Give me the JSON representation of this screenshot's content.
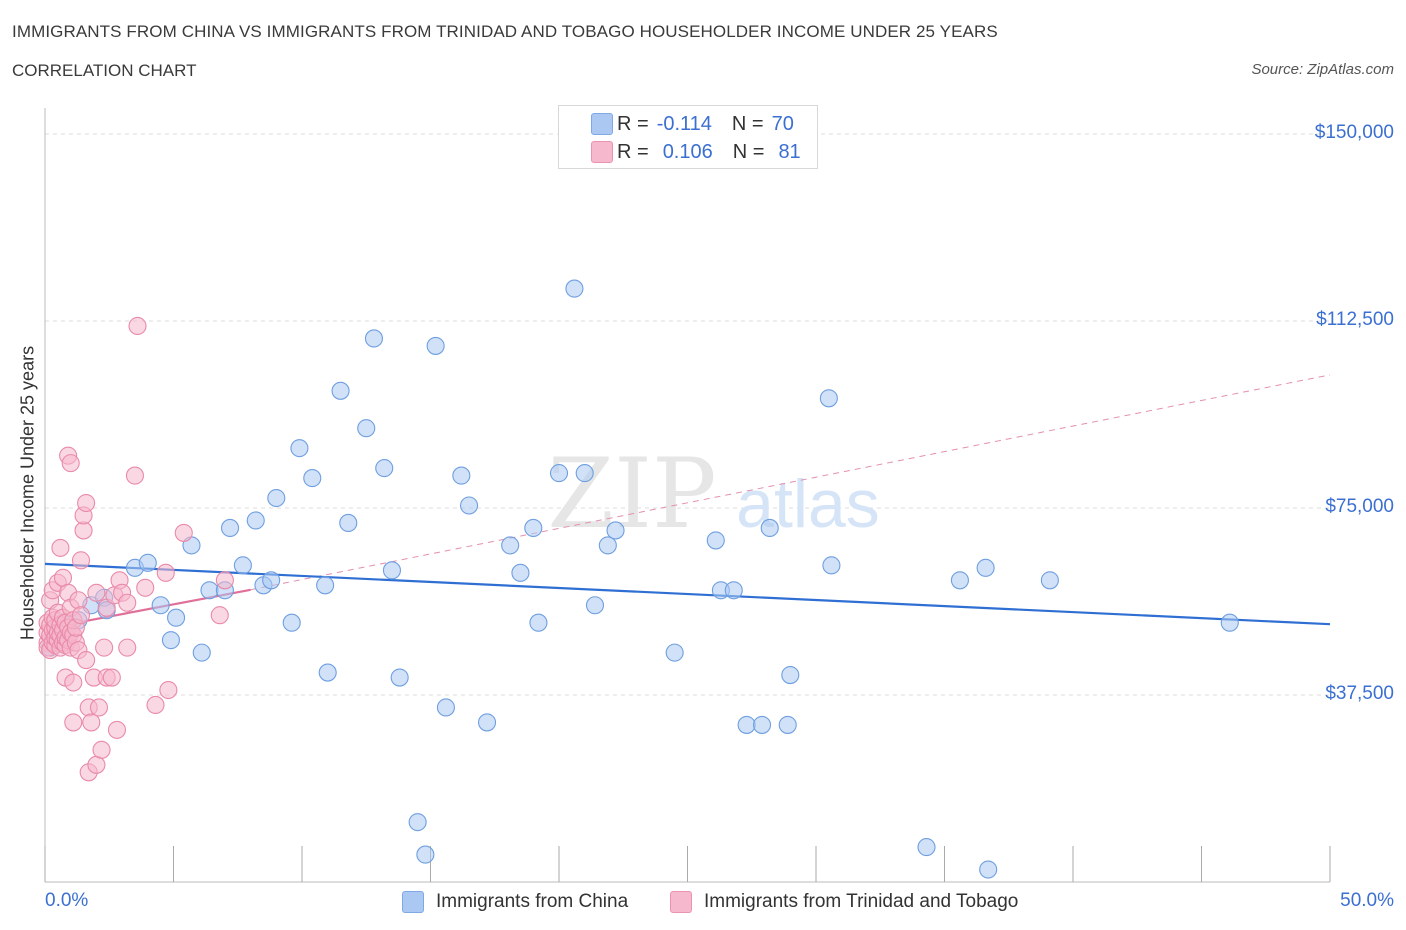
{
  "title": "IMMIGRANTS FROM CHINA VS IMMIGRANTS FROM TRINIDAD AND TOBAGO HOUSEHOLDER INCOME UNDER 25 YEARS",
  "subtitle": "CORRELATION CHART",
  "source": "Source: ZipAtlas.com",
  "watermark": {
    "zip": "ZIP",
    "atlas": "atlas"
  },
  "legend": {
    "rows": [
      {
        "r_label": "R =",
        "r_value": "-0.114",
        "n_label": "N =",
        "n_value": "70",
        "color": "#aac8f2"
      },
      {
        "r_label": "R =",
        "r_value": "0.106",
        "n_label": "N =",
        "n_value": "81",
        "color": "#f6b8cc"
      }
    ]
  },
  "chart_data": {
    "type": "scatter",
    "title": "IMMIGRANTS FROM CHINA VS IMMIGRANTS FROM TRINIDAD AND TOBAGO HOUSEHOLDER INCOME UNDER 25 YEARS",
    "xlabel": "",
    "ylabel": "Householder Income Under 25 years",
    "xlim": [
      0,
      50
    ],
    "ylim": [
      0,
      150000
    ],
    "x_tick_labels": [
      "0.0%",
      "50.0%"
    ],
    "y_tick_labels": [
      "$37,500",
      "$75,000",
      "$112,500",
      "$150,000"
    ],
    "y_ticks": [
      37500,
      75000,
      112500,
      150000
    ],
    "grid": "horizontal dashed",
    "legend_position": "top-center",
    "series": [
      {
        "name": "Immigrants from China",
        "color": "#6f9fe0",
        "fill": "#aac8f2",
        "trend": {
          "x": [
            0,
            50
          ],
          "y": [
            63800,
            51700
          ],
          "style": "solid",
          "color": "#2f6fd3"
        },
        "points": [
          [
            0.2,
            47000
          ],
          [
            0.3,
            48500
          ],
          [
            0.5,
            50500
          ],
          [
            0.7,
            52000
          ],
          [
            0.9,
            51500
          ],
          [
            1.3,
            52500
          ],
          [
            1.8,
            55500
          ],
          [
            2.3,
            57000
          ],
          [
            2.4,
            54500
          ],
          [
            3.5,
            63000
          ],
          [
            4.0,
            64000
          ],
          [
            4.5,
            55500
          ],
          [
            4.9,
            48500
          ],
          [
            5.1,
            53000
          ],
          [
            5.7,
            67500
          ],
          [
            6.1,
            46000
          ],
          [
            6.4,
            58500
          ],
          [
            7.0,
            58500
          ],
          [
            7.2,
            71000
          ],
          [
            7.7,
            63500
          ],
          [
            8.2,
            72500
          ],
          [
            8.5,
            59500
          ],
          [
            8.8,
            60500
          ],
          [
            9.0,
            77000
          ],
          [
            9.6,
            52000
          ],
          [
            9.9,
            87000
          ],
          [
            10.4,
            81000
          ],
          [
            10.9,
            59500
          ],
          [
            11.0,
            42000
          ],
          [
            11.5,
            98500
          ],
          [
            11.8,
            72000
          ],
          [
            12.5,
            91000
          ],
          [
            12.8,
            109000
          ],
          [
            13.2,
            83000
          ],
          [
            13.5,
            62500
          ],
          [
            13.8,
            41000
          ],
          [
            14.5,
            12000
          ],
          [
            14.8,
            5500
          ],
          [
            15.2,
            107500
          ],
          [
            15.6,
            35000
          ],
          [
            16.2,
            81500
          ],
          [
            16.5,
            75500
          ],
          [
            17.2,
            32000
          ],
          [
            18.1,
            67500
          ],
          [
            18.5,
            62000
          ],
          [
            19.0,
            71000
          ],
          [
            19.2,
            52000
          ],
          [
            20.0,
            82000
          ],
          [
            20.6,
            119000
          ],
          [
            21.0,
            82000
          ],
          [
            21.4,
            55500
          ],
          [
            21.9,
            67500
          ],
          [
            22.2,
            70500
          ],
          [
            24.5,
            46000
          ],
          [
            26.1,
            68500
          ],
          [
            26.3,
            58500
          ],
          [
            26.8,
            58500
          ],
          [
            27.3,
            31500
          ],
          [
            27.9,
            31500
          ],
          [
            28.2,
            71000
          ],
          [
            28.9,
            31500
          ],
          [
            29.0,
            41500
          ],
          [
            30.5,
            97000
          ],
          [
            30.6,
            63500
          ],
          [
            34.3,
            7000
          ],
          [
            35.6,
            60500
          ],
          [
            36.6,
            63000
          ],
          [
            36.7,
            2500
          ],
          [
            39.1,
            60500
          ],
          [
            46.1,
            52000
          ]
        ]
      },
      {
        "name": "Immigrants from Trinidad and Tobago",
        "color": "#e98aa8",
        "fill": "#f6b8cc",
        "trend": {
          "x": [
            0,
            8.0
          ],
          "y": [
            50800,
            58600
          ],
          "style": "solid",
          "color": "#e0709a"
        },
        "trend_extension": {
          "x": [
            8.0,
            50
          ],
          "y": [
            58600,
            101700
          ],
          "style": "dashed",
          "color": "#e58fae"
        },
        "points": [
          [
            0.1,
            48000
          ],
          [
            0.1,
            50000
          ],
          [
            0.1,
            52000
          ],
          [
            0.1,
            47000
          ],
          [
            0.2,
            49500
          ],
          [
            0.2,
            51500
          ],
          [
            0.2,
            56500
          ],
          [
            0.2,
            46500
          ],
          [
            0.3,
            48000
          ],
          [
            0.3,
            50500
          ],
          [
            0.3,
            53000
          ],
          [
            0.3,
            58500
          ],
          [
            0.4,
            47500
          ],
          [
            0.4,
            49000
          ],
          [
            0.4,
            51000
          ],
          [
            0.4,
            52500
          ],
          [
            0.5,
            48500
          ],
          [
            0.5,
            50000
          ],
          [
            0.5,
            54000
          ],
          [
            0.5,
            60000
          ],
          [
            0.6,
            47000
          ],
          [
            0.6,
            49500
          ],
          [
            0.6,
            51500
          ],
          [
            0.6,
            67000
          ],
          [
            0.7,
            48000
          ],
          [
            0.7,
            50500
          ],
          [
            0.7,
            53000
          ],
          [
            0.7,
            61000
          ],
          [
            0.8,
            47500
          ],
          [
            0.8,
            49000
          ],
          [
            0.8,
            52000
          ],
          [
            0.8,
            41000
          ],
          [
            0.9,
            48500
          ],
          [
            0.9,
            51000
          ],
          [
            0.9,
            58000
          ],
          [
            0.9,
            85500
          ],
          [
            1.0,
            47000
          ],
          [
            1.0,
            50000
          ],
          [
            1.0,
            55000
          ],
          [
            1.0,
            84000
          ],
          [
            1.1,
            49500
          ],
          [
            1.1,
            52500
          ],
          [
            1.1,
            40000
          ],
          [
            1.1,
            32000
          ],
          [
            1.2,
            48000
          ],
          [
            1.2,
            51000
          ],
          [
            1.3,
            46500
          ],
          [
            1.3,
            56500
          ],
          [
            1.4,
            53500
          ],
          [
            1.4,
            64500
          ],
          [
            1.5,
            70500
          ],
          [
            1.5,
            73500
          ],
          [
            1.6,
            76000
          ],
          [
            1.6,
            44500
          ],
          [
            1.7,
            22000
          ],
          [
            1.7,
            35000
          ],
          [
            1.8,
            32000
          ],
          [
            1.9,
            41000
          ],
          [
            2.0,
            58000
          ],
          [
            2.0,
            23500
          ],
          [
            2.1,
            35000
          ],
          [
            2.2,
            26500
          ],
          [
            2.3,
            47000
          ],
          [
            2.4,
            41000
          ],
          [
            2.4,
            55000
          ],
          [
            2.6,
            41000
          ],
          [
            2.7,
            57500
          ],
          [
            2.8,
            30500
          ],
          [
            2.9,
            60500
          ],
          [
            3.0,
            58000
          ],
          [
            3.2,
            56000
          ],
          [
            3.2,
            47000
          ],
          [
            3.5,
            81500
          ],
          [
            3.6,
            111500
          ],
          [
            3.9,
            59000
          ],
          [
            4.3,
            35500
          ],
          [
            4.7,
            62000
          ],
          [
            4.8,
            38500
          ],
          [
            5.4,
            70000
          ],
          [
            6.8,
            53500
          ],
          [
            7.0,
            60500
          ]
        ]
      }
    ]
  },
  "bottom_legend": [
    {
      "label": "Immigrants from China",
      "color": "#aac8f2"
    },
    {
      "label": "Immigrants from Trinidad and Tobago",
      "color": "#f6b8cc"
    }
  ]
}
